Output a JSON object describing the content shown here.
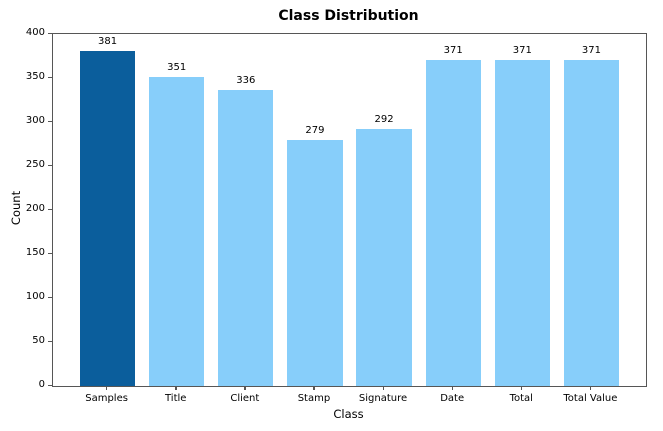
{
  "chart_data": {
    "type": "bar",
    "title": "Class Distribution",
    "xlabel": "Class",
    "ylabel": "Count",
    "categories": [
      "Samples",
      "Title",
      "Client",
      "Stamp",
      "Signature",
      "Date",
      "Total",
      "Total Value"
    ],
    "values": [
      381,
      351,
      336,
      279,
      292,
      371,
      371,
      371
    ],
    "bar_colors": [
      "#0b5e9c",
      "#87CEFA",
      "#87CEFA",
      "#87CEFA",
      "#87CEFA",
      "#87CEFA",
      "#87CEFA",
      "#87CEFA"
    ],
    "highlight_color": "#0b5e9c",
    "default_color": "#87CEFA",
    "ylim": [
      0,
      400
    ],
    "ytick_step": 50,
    "ytick_labels": [
      "0",
      "50",
      "100",
      "150",
      "200",
      "250",
      "300",
      "350",
      "400"
    ],
    "bar_width_fraction": 0.8,
    "grid": false,
    "legend": null,
    "value_labels_shown": true,
    "spine_color": "#565656",
    "background_color": "#ffffff"
  }
}
